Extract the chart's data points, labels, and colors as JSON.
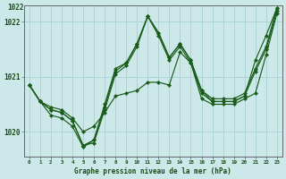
{
  "xlabel": "Graphe pression niveau de la mer (hPa)",
  "bg_color": "#cce8e8",
  "grid_color": "#aad4d4",
  "line_color": "#1a5c1a",
  "xlim": [
    -0.5,
    23.5
  ],
  "ylim": [
    1019.55,
    1022.3
  ],
  "yticks": [
    1020,
    1021,
    1022
  ],
  "ytick_labels": [
    "1020",
    "1021",
    "1022"
  ],
  "ytick_partial": "1022",
  "xticks": [
    0,
    1,
    2,
    3,
    4,
    5,
    6,
    7,
    8,
    9,
    10,
    11,
    12,
    13,
    14,
    15,
    16,
    17,
    18,
    19,
    20,
    21,
    22,
    23
  ],
  "series": [
    [
      1020.85,
      1020.55,
      1020.45,
      1020.4,
      1020.35,
      1019.85,
      1019.9,
      1020.3,
      1020.8,
      1020.85,
      1020.95,
      1021.1,
      1021.05,
      1020.85,
      1021.55,
      1021.3,
      1020.6,
      1020.5,
      1020.55,
      1020.55,
      1020.65,
      1020.75,
      1021.45,
      1022.2
    ],
    [
      1020.85,
      1020.55,
      1020.45,
      1020.4,
      1020.2,
      1019.75,
      1019.8,
      1020.4,
      1021.05,
      1021.2,
      1021.55,
      1022.05,
      1021.75,
      1021.3,
      1021.55,
      1021.25,
      1020.7,
      1020.55,
      1020.55,
      1020.55,
      1020.65,
      1021.1,
      1021.5,
      1022.2
    ],
    [
      1020.85,
      1020.55,
      1020.45,
      1020.4,
      1020.2,
      1019.75,
      1019.8,
      1020.4,
      1021.05,
      1021.2,
      1021.55,
      1022.05,
      1021.75,
      1021.3,
      1021.55,
      1021.25,
      1020.7,
      1020.55,
      1020.55,
      1020.55,
      1020.65,
      1021.1,
      1021.5,
      1022.2
    ],
    [
      1020.85,
      1020.55,
      1020.5,
      1020.45,
      1020.2,
      1019.75,
      1019.85,
      1020.45,
      1021.1,
      1021.25,
      1021.6,
      1022.1,
      1021.8,
      1021.35,
      1021.6,
      1021.3,
      1020.75,
      1020.6,
      1020.6,
      1020.6,
      1020.7,
      1021.15,
      1021.55,
      1022.25
    ]
  ],
  "series_sharp": [
    1020.85,
    1020.55,
    1020.3,
    1020.25,
    1020.1,
    1019.75,
    1020.0,
    1020.8,
    1021.25,
    1021.3,
    1021.6,
    1022.1,
    1021.8,
    1021.35,
    1021.6,
    1021.3,
    1020.75,
    1020.55,
    1020.55,
    1020.55,
    1020.65,
    1021.3,
    1021.75,
    1022.25
  ]
}
